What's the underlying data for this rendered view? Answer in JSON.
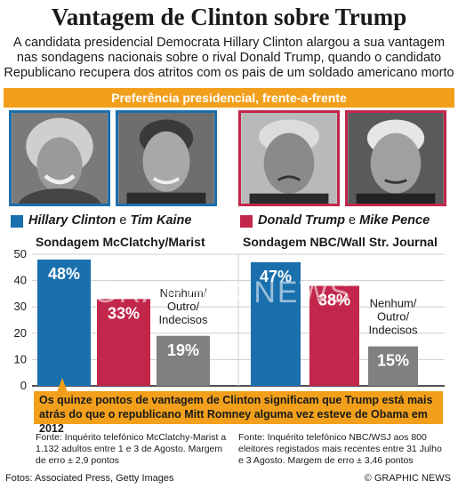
{
  "header": {
    "title": "Vantagem de Clinton sobre Trump",
    "subtitle": "A candidata presidencial Democrata Hillary Clinton alargou a sua vantagem nas sondagens nacionais sobre o rival Donald Trump, quando o candidato Republicano recupera dos atritos com os pais de um soldado americano morto",
    "banner": "Preferência presidencial, frente-a-frente"
  },
  "legend": {
    "dem_pair": {
      "name1": "Hillary Clinton",
      "joiner": "e",
      "name2": "Tim Kaine",
      "color": "#1a6fad"
    },
    "rep_pair": {
      "name1": "Donald Trump",
      "joiner": "e",
      "name2": "Mike Pence",
      "color": "#c2274b"
    }
  },
  "colors": {
    "democrat": "#1a6fad",
    "republican": "#c2274b",
    "other": "#808080",
    "accent": "#f2a01c"
  },
  "chart_data": [
    {
      "type": "bar",
      "title": "Sondagem McClatchy/Marist",
      "categories": [
        "Hillary Clinton",
        "Donald Trump",
        "Nenhum/ Outro/ Indecisos"
      ],
      "values": [
        48,
        33,
        19
      ],
      "value_labels": [
        "48%",
        "33%",
        "19%"
      ],
      "other_label": [
        "Nenhum/",
        "Outro/",
        "Indecisos"
      ],
      "yticks": [
        "0",
        "10",
        "20",
        "30",
        "40",
        "50"
      ],
      "ylim": [
        0,
        50
      ],
      "grid": true
    },
    {
      "type": "bar",
      "title": "Sondagem NBC/Wall Str. Journal",
      "categories": [
        "Hillary Clinton",
        "Donald Trump",
        "Nenhum/ Outro/ Indecisos"
      ],
      "values": [
        47,
        38,
        15
      ],
      "value_labels": [
        "47%",
        "38%",
        "15%"
      ],
      "other_label": [
        "Nenhum/",
        "Outro/",
        "Indecisos"
      ],
      "ylim": [
        0,
        50
      ],
      "grid": true
    }
  ],
  "callout": "Os quinze pontos de vantagem de Clinton significam que Trump está mais atrás do que o republicano Mitt Romney alguma vez esteve de Obama em 2012",
  "sources": {
    "left": "Fonte: Inquérito telefónico McClatchy-Marist a 1.132 adultos entre 1 e 3 de Agosto. Margem de erro ± 2,9 pontos",
    "right": "Fonte: Inquérito telefónico NBC/WSJ aos 800 eleitores registados mais recentes entre 31 Julho e 3 Agosto. Margem de erro ± 3,46 pontos"
  },
  "footer": {
    "credits": "Fotos: Associated Press, Getty Images",
    "copyright": "© GRAPHIC NEWS"
  },
  "watermark": "GRAPHIC NEWS"
}
